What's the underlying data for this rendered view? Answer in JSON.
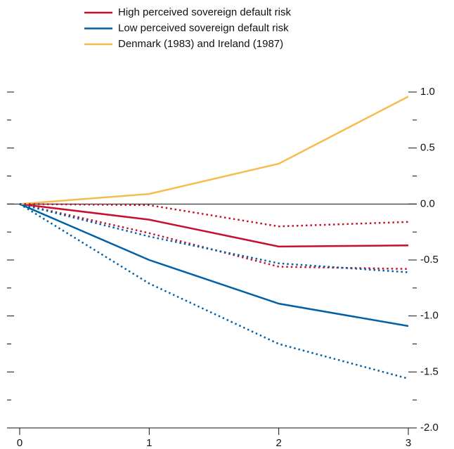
{
  "chart_data": {
    "type": "line",
    "x": [
      0,
      1,
      2,
      3
    ],
    "series": [
      {
        "name": "High perceived sovereign default risk",
        "color": "#c8102e",
        "values": [
          0,
          -0.14,
          -0.38,
          -0.37
        ]
      },
      {
        "name": "Low perceived sovereign default risk",
        "color": "#0060a8",
        "values": [
          0,
          -0.5,
          -0.89,
          -1.09
        ]
      },
      {
        "name": "Denmark (1983) and Ireland (1987)",
        "color": "#f7bc4f",
        "values": [
          0,
          0.09,
          0.36,
          0.96
        ]
      },
      {
        "color": "#c8102e",
        "dashed": true,
        "values": [
          0,
          -0.01,
          -0.2,
          -0.16
        ]
      },
      {
        "color": "#c8102e",
        "dashed": true,
        "values": [
          0,
          -0.26,
          -0.56,
          -0.58
        ]
      },
      {
        "color": "#0060a8",
        "dashed": true,
        "values": [
          0,
          -0.29,
          -0.53,
          -0.61
        ]
      },
      {
        "color": "#0060a8",
        "dashed": true,
        "values": [
          0,
          -0.71,
          -1.25,
          -1.56
        ]
      }
    ],
    "xlim": [
      0,
      3
    ],
    "xticks": [
      0,
      1,
      2,
      3
    ],
    "ylim": [
      -2,
      1.0
    ],
    "yticks": [
      {
        "value": 1,
        "label": "1.0"
      },
      0.5,
      {
        "value": 0,
        "label": "0.0"
      },
      -0.5,
      {
        "value": -1,
        "label": "-1.0"
      },
      -1.5,
      {
        "value": -2,
        "label": "-2.0"
      }
    ],
    "yminorticks": [
      0.75,
      0.25,
      -0.25,
      -0.75,
      -1.25,
      -1.75
    ]
  }
}
